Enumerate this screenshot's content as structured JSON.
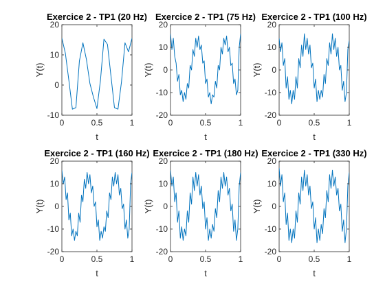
{
  "figure": {
    "background": "#ffffff"
  },
  "series_color": "#0072BD",
  "chart_data": [
    {
      "type": "line",
      "title": "Exercice 2 - TP1 (20 Hz)",
      "xlabel": "t",
      "ylabel": "Y(t)",
      "xlim": [
        0,
        1
      ],
      "ylim": [
        -10,
        20
      ],
      "xticks": [
        0,
        0.5,
        1
      ],
      "xtick_labels": [
        "0",
        "0.5",
        "1"
      ],
      "yticks": [
        -10,
        0,
        10,
        20
      ],
      "ytick_labels": [
        "-10",
        "0",
        "10",
        "20"
      ],
      "grid": false,
      "x": [
        0,
        0.05,
        0.1,
        0.15,
        0.2,
        0.25,
        0.3,
        0.35,
        0.4,
        0.45,
        0.5,
        0.55,
        0.6,
        0.65,
        0.7,
        0.75,
        0.8,
        0.85,
        0.9,
        0.95,
        1.0
      ],
      "y": [
        15.5,
        10.5,
        1.5,
        -8.0,
        -7.5,
        8.0,
        14.0,
        8.5,
        0.5,
        -4.0,
        -7.8,
        1.5,
        15.2,
        13.5,
        3.0,
        -7.5,
        -8.0,
        1.0,
        14.0,
        11.0,
        15.5
      ]
    },
    {
      "type": "line",
      "title": "Exercice 2 - TP1 (75 Hz)",
      "xlabel": "t",
      "ylabel": "Y(t)",
      "xlim": [
        0,
        1
      ],
      "ylim": [
        -20,
        20
      ],
      "xticks": [
        0,
        0.5,
        1
      ],
      "xtick_labels": [
        "0",
        "0.5",
        "1"
      ],
      "yticks": [
        -20,
        -10,
        0,
        10,
        20
      ],
      "ytick_labels": [
        "-20",
        "-10",
        "0",
        "10",
        "20"
      ],
      "grid": false,
      "x": [
        0,
        0.02,
        0.04,
        0.06,
        0.08,
        0.1,
        0.12,
        0.14,
        0.16,
        0.18,
        0.2,
        0.22,
        0.24,
        0.26,
        0.28,
        0.3,
        0.32,
        0.34,
        0.36,
        0.38,
        0.4,
        0.42,
        0.44,
        0.46,
        0.48,
        0.5,
        0.52,
        0.54,
        0.56,
        0.58,
        0.6,
        0.62,
        0.64,
        0.66,
        0.68,
        0.7,
        0.72,
        0.74,
        0.76,
        0.78,
        0.8,
        0.82,
        0.84,
        0.86,
        0.88,
        0.9,
        0.92,
        0.94,
        0.96,
        0.98,
        1.0
      ],
      "y": [
        16,
        9,
        14,
        6,
        3,
        -5,
        -2,
        -11,
        -9,
        -14,
        -10,
        -13,
        -6,
        -8,
        2,
        0,
        9,
        6,
        14,
        10,
        15,
        9,
        11,
        3,
        4,
        -6,
        -4,
        -12,
        -10,
        -15,
        -11,
        -12,
        -5,
        -8,
        2,
        0,
        10,
        7,
        14,
        11,
        15,
        8,
        10,
        2,
        3,
        -6,
        -4,
        -11,
        -9,
        10,
        16
      ]
    },
    {
      "type": "line",
      "title": "Exercice 2 - TP1 (100 Hz)",
      "xlabel": "t",
      "ylabel": "Y(t)",
      "xlim": [
        0,
        1
      ],
      "ylim": [
        -20,
        20
      ],
      "xticks": [
        0,
        0.5,
        1
      ],
      "xtick_labels": [
        "0",
        "0.5",
        "1"
      ],
      "yticks": [
        -20,
        -10,
        0,
        10,
        20
      ],
      "ytick_labels": [
        "-20",
        "-10",
        "0",
        "10",
        "20"
      ],
      "grid": false,
      "x": [
        0,
        0.02,
        0.04,
        0.06,
        0.08,
        0.1,
        0.12,
        0.14,
        0.16,
        0.18,
        0.2,
        0.22,
        0.24,
        0.26,
        0.28,
        0.3,
        0.32,
        0.34,
        0.36,
        0.38,
        0.4,
        0.42,
        0.44,
        0.46,
        0.48,
        0.5,
        0.52,
        0.54,
        0.56,
        0.58,
        0.6,
        0.62,
        0.64,
        0.66,
        0.68,
        0.7,
        0.72,
        0.74,
        0.76,
        0.78,
        0.8,
        0.82,
        0.84,
        0.86,
        0.88,
        0.9,
        0.92,
        0.94,
        0.96,
        0.98,
        1.0
      ],
      "y": [
        14,
        8,
        12,
        2,
        5,
        -8,
        -3,
        -13,
        -9,
        -15,
        -9,
        -13,
        -3,
        -8,
        5,
        1,
        11,
        6,
        16,
        9,
        14,
        7,
        11,
        1,
        3,
        -8,
        -4,
        -14,
        -9,
        -13,
        -9,
        -12,
        -2,
        -6,
        5,
        2,
        12,
        7,
        16,
        9,
        14,
        6,
        10,
        0,
        2,
        -9,
        -5,
        -14,
        -10,
        9,
        13
      ]
    },
    {
      "type": "line",
      "title": "Exercice 2 - TP1 (160 Hz)",
      "xlabel": "t",
      "ylabel": "Y(t)",
      "xlim": [
        0,
        1
      ],
      "ylim": [
        -20,
        20
      ],
      "xticks": [
        0,
        0.5,
        1
      ],
      "xtick_labels": [
        "0",
        "0.5",
        "1"
      ],
      "yticks": [
        -20,
        -10,
        0,
        10,
        20
      ],
      "ytick_labels": [
        "-20",
        "-10",
        "0",
        "10",
        "20"
      ],
      "grid": false,
      "x": [
        0,
        0.02,
        0.04,
        0.06,
        0.08,
        0.1,
        0.12,
        0.14,
        0.16,
        0.18,
        0.2,
        0.22,
        0.24,
        0.26,
        0.28,
        0.3,
        0.32,
        0.34,
        0.36,
        0.38,
        0.4,
        0.42,
        0.44,
        0.46,
        0.48,
        0.5,
        0.52,
        0.54,
        0.56,
        0.58,
        0.6,
        0.62,
        0.64,
        0.66,
        0.68,
        0.7,
        0.72,
        0.74,
        0.76,
        0.78,
        0.8,
        0.82,
        0.84,
        0.86,
        0.88,
        0.9,
        0.92,
        0.94,
        0.96,
        0.98,
        1.0
      ],
      "y": [
        16,
        10,
        13,
        3,
        6,
        -6,
        -3,
        -13,
        -10,
        -15,
        -11,
        -13,
        -3,
        -7,
        5,
        2,
        12,
        8,
        15,
        10,
        14,
        6,
        9,
        0,
        2,
        -9,
        -6,
        -15,
        -11,
        -14,
        -9,
        -11,
        -2,
        -5,
        6,
        3,
        13,
        9,
        15,
        10,
        14,
        5,
        8,
        -1,
        1,
        -10,
        -6,
        -14,
        -10,
        10,
        15
      ]
    },
    {
      "type": "line",
      "title": "Exercice 2 - TP1 (180 Hz)",
      "xlabel": "t",
      "ylabel": "Y(t)",
      "xlim": [
        0,
        1
      ],
      "ylim": [
        -20,
        20
      ],
      "xticks": [
        0,
        0.5,
        1
      ],
      "xtick_labels": [
        "0",
        "0.5",
        "1"
      ],
      "yticks": [
        -20,
        -10,
        0,
        10,
        20
      ],
      "ytick_labels": [
        "-20",
        "-10",
        "0",
        "10",
        "20"
      ],
      "grid": false,
      "x": [
        0,
        0.02,
        0.04,
        0.06,
        0.08,
        0.1,
        0.12,
        0.14,
        0.16,
        0.18,
        0.2,
        0.22,
        0.24,
        0.26,
        0.28,
        0.3,
        0.32,
        0.34,
        0.36,
        0.38,
        0.4,
        0.42,
        0.44,
        0.46,
        0.48,
        0.5,
        0.52,
        0.54,
        0.56,
        0.58,
        0.6,
        0.62,
        0.64,
        0.66,
        0.68,
        0.7,
        0.72,
        0.74,
        0.76,
        0.78,
        0.8,
        0.82,
        0.84,
        0.86,
        0.88,
        0.9,
        0.92,
        0.94,
        0.96,
        0.98,
        1.0
      ],
      "y": [
        16,
        9,
        13,
        2,
        6,
        -7,
        -2,
        -14,
        -9,
        -15,
        -10,
        -13,
        -2,
        -7,
        6,
        1,
        13,
        7,
        15,
        9,
        14,
        5,
        9,
        -1,
        2,
        -10,
        -5,
        -15,
        -10,
        -14,
        -8,
        -11,
        -1,
        -5,
        7,
        2,
        13,
        8,
        15,
        9,
        13,
        5,
        8,
        -2,
        1,
        -11,
        -6,
        -15,
        -10,
        9,
        15
      ]
    },
    {
      "type": "line",
      "title": "Exercice 2 - TP1 (330 Hz)",
      "xlabel": "t",
      "ylabel": "Y(t)",
      "xlim": [
        0,
        1
      ],
      "ylim": [
        -20,
        20
      ],
      "xticks": [
        0,
        0.5,
        1
      ],
      "xtick_labels": [
        "0",
        "0.5",
        "1"
      ],
      "yticks": [
        -20,
        -10,
        0,
        10,
        20
      ],
      "ytick_labels": [
        "-20",
        "-10",
        "0",
        "10",
        "20"
      ],
      "grid": false,
      "x": [
        0,
        0.02,
        0.04,
        0.06,
        0.08,
        0.1,
        0.12,
        0.14,
        0.16,
        0.18,
        0.2,
        0.22,
        0.24,
        0.26,
        0.28,
        0.3,
        0.32,
        0.34,
        0.36,
        0.38,
        0.4,
        0.42,
        0.44,
        0.46,
        0.48,
        0.5,
        0.52,
        0.54,
        0.56,
        0.58,
        0.6,
        0.62,
        0.64,
        0.66,
        0.68,
        0.7,
        0.72,
        0.74,
        0.76,
        0.78,
        0.8,
        0.82,
        0.84,
        0.86,
        0.88,
        0.9,
        0.92,
        0.94,
        0.96,
        0.98,
        1.0
      ],
      "y": [
        17,
        9,
        14,
        2,
        6,
        -8,
        -3,
        -15,
        -10,
        -16,
        -10,
        -14,
        -2,
        -7,
        6,
        1,
        13,
        7,
        16,
        9,
        14,
        5,
        9,
        -1,
        2,
        -10,
        -5,
        -16,
        -10,
        -15,
        -8,
        -12,
        -1,
        -5,
        7,
        2,
        14,
        8,
        16,
        9,
        13,
        5,
        8,
        -2,
        1,
        -11,
        -6,
        -16,
        -10,
        9,
        15
      ]
    }
  ]
}
